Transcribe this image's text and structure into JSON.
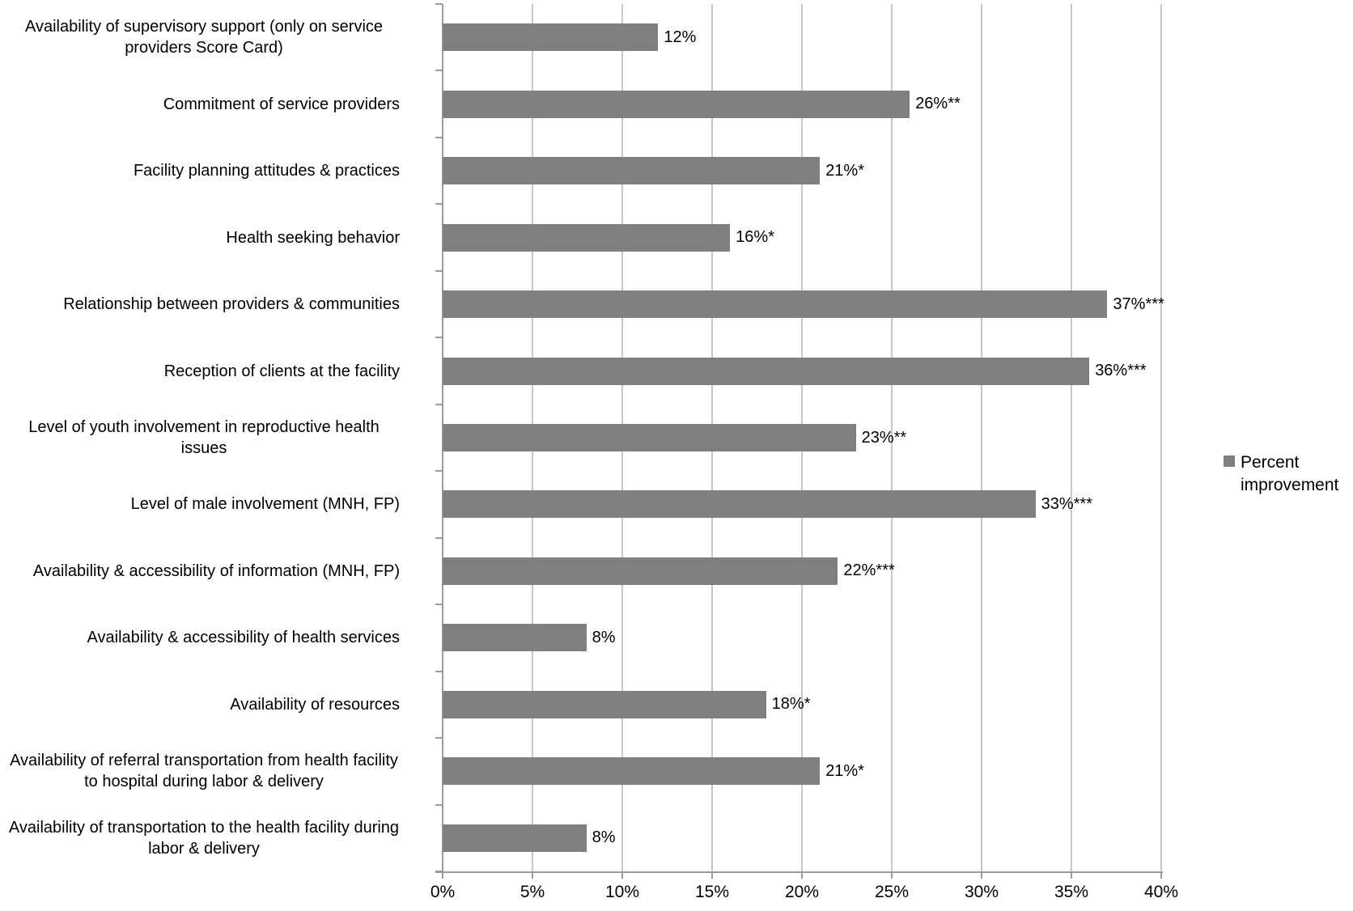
{
  "chart_data": {
    "type": "bar",
    "orientation": "horizontal",
    "title": "",
    "xlabel": "",
    "ylabel": "",
    "categories": [
      "Availability of supervisory support (only on service providers Score Card)",
      "Commitment of service providers",
      "Facility planning attitudes & practices",
      "Health seeking behavior",
      "Relationship between providers & communities",
      "Reception of clients at the facility",
      "Level of youth involvement in reproductive health issues",
      "Level of male involvement (MNH, FP)",
      "Availability & accessibility of information (MNH, FP)",
      "Availability & accessibility of health services",
      "Availability of resources",
      "Availability of referral transportation from health facility to hospital during labor & delivery",
      "Availability of transportation to the health facility during labor & delivery"
    ],
    "series": [
      {
        "name": "Percent improvement",
        "values": [
          12,
          26,
          21,
          16,
          37,
          36,
          23,
          33,
          22,
          8,
          18,
          21,
          8
        ]
      }
    ],
    "data_labels": [
      "12%",
      "26%**",
      "21%*",
      "16%*",
      "37%***",
      "36%***",
      "23%**",
      "33%***",
      "22%***",
      "8%",
      "18%*",
      "21%*",
      "8%"
    ],
    "x_ticks": [
      "0%",
      "5%",
      "10%",
      "15%",
      "20%",
      "25%",
      "30%",
      "35%",
      "40%"
    ],
    "xlim": [
      0,
      40
    ],
    "grid": true,
    "legend_label": "Percent improvement",
    "legend_position": "right-middle",
    "colors": {
      "bar": "#7f7f7f",
      "gridline": "#c6c6c6",
      "axis": "#9b9b9b",
      "text": "#000000",
      "background": "#ffffff"
    }
  }
}
